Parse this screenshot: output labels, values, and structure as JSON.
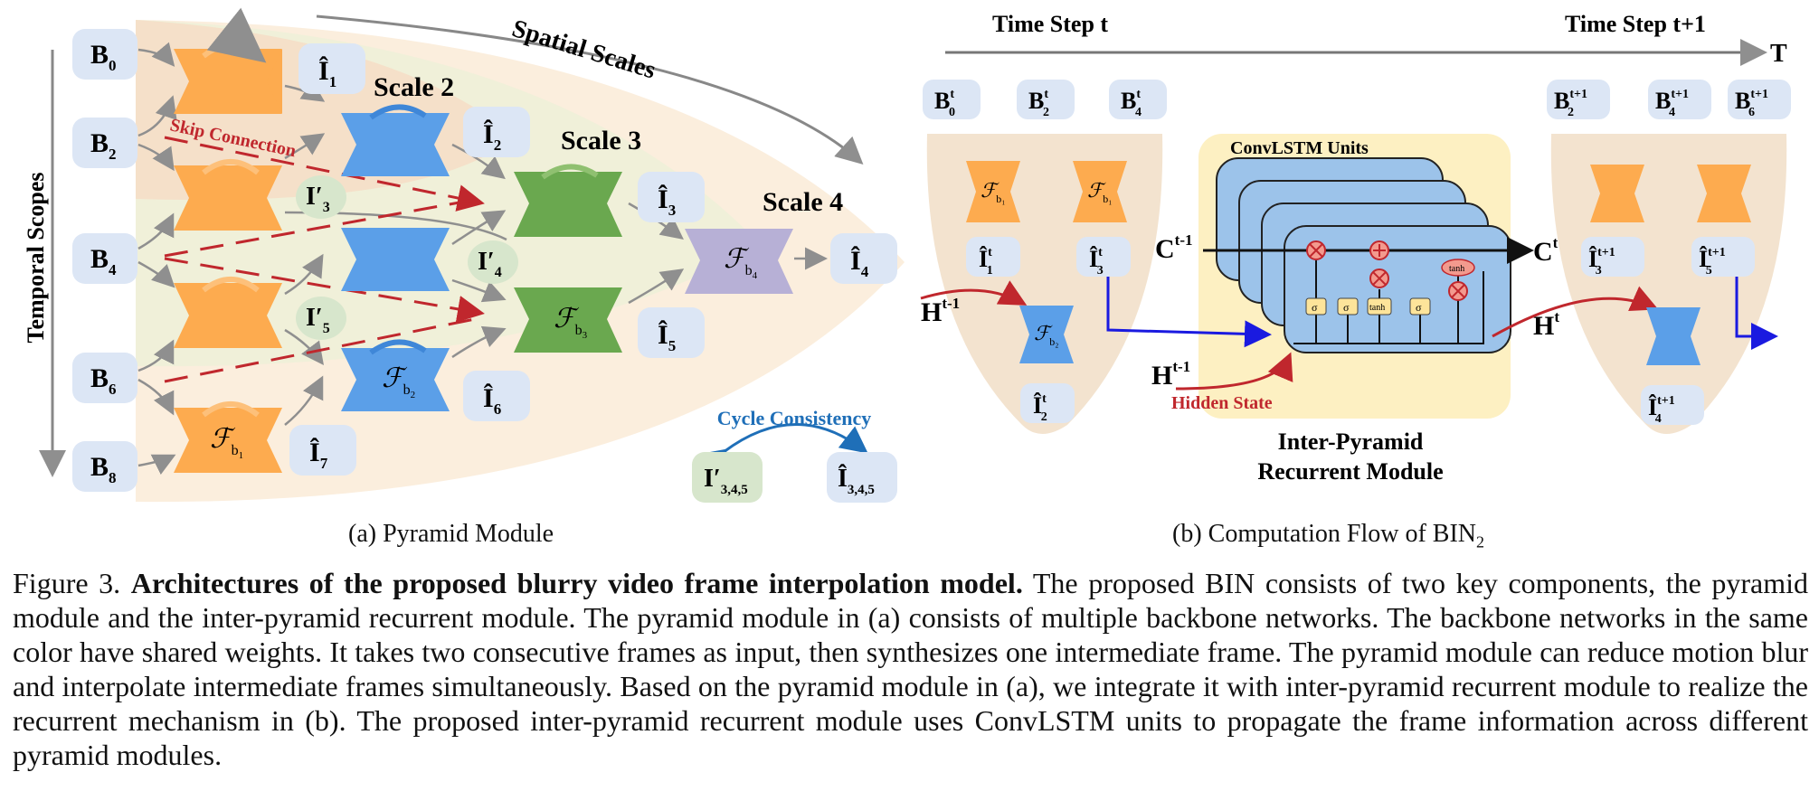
{
  "panel_a": {
    "subcaption": "(a) Pyramid Module",
    "left_axis_label": "Temporal Scopes",
    "top_axis_label": "Spatial Scales",
    "skip_label": "Skip Connection",
    "cycle_label": "Cycle Consistency",
    "scale_labels": [
      "Scale 2",
      "Scale 3",
      "Scale 4"
    ],
    "inputs": [
      "B",
      "B",
      "B",
      "B",
      "B"
    ],
    "input_subs": [
      "0",
      "2",
      "4",
      "6",
      "8"
    ],
    "outputs": [
      "Î",
      "Î",
      "Î",
      "Î",
      "Î",
      "Î",
      "Î"
    ],
    "output_subs": [
      "1",
      "2",
      "3",
      "4",
      "5",
      "6",
      "7"
    ],
    "warped": [
      "I′",
      "I′",
      "I′"
    ],
    "warped_subs": [
      "3",
      "4",
      "5"
    ],
    "cycle_items": [
      "I′",
      "Î"
    ],
    "cycle_subs": [
      "3,4,5",
      "3,4,5"
    ],
    "net_symbol": "ℱ",
    "net_subs": [
      "b1",
      "b2",
      "b3",
      "b4"
    ]
  },
  "panel_b": {
    "subcaption": "(b) Computation Flow of BIN",
    "subcaption_sub": "2",
    "time_step_t": "Time Step t",
    "time_step_t1": "Time Step t+1",
    "time_axis": "T",
    "convlstm_label": "ConvLSTM Units",
    "module_title_1": "Inter-Pyramid",
    "module_title_2": "Recurrent Module",
    "hidden_state": "Hidden State",
    "c_prev": "C",
    "c_prev_sup": "t-1",
    "c_next": "C",
    "c_next_sup": "t",
    "h_prev": "H",
    "h_prev_sup": "t-1",
    "h_next": "H",
    "h_next_sup": "t",
    "sigma": "σ",
    "tanh": "tanh",
    "inputs_t": [
      "B",
      "B",
      "B"
    ],
    "inputs_t_subs": [
      "0",
      "2",
      "4"
    ],
    "inputs_t_sup": "t",
    "inputs_t1": [
      "B",
      "B",
      "B"
    ],
    "inputs_t1_subs": [
      "2",
      "4",
      "6"
    ],
    "inputs_t1_sup": "t+1",
    "outputs_t_subs": [
      "1",
      "3",
      "2"
    ],
    "outputs_t1_subs": [
      "3",
      "5",
      "4"
    ]
  },
  "caption": {
    "label": "Figure 3.",
    "bold_title": "Architectures of the proposed blurry video frame interpolation model.",
    "body": "The proposed BIN consists of two key components, the pyramid module and the inter-pyramid recurrent module. The pyramid module in (a) consists of multiple backbone networks. The backbone networks in the same color have shared weights. It takes two consecutive frames as input, then synthesizes one intermediate frame. The pyramid module can reduce motion blur and interpolate intermediate frames simultaneously. Based on the pyramid module in (a), we integrate it with inter-pyramid recurrent module to realize the recurrent mechanism in (b). The proposed inter-pyramid recurrent module uses ConvLSTM units to propagate the frame information across different pyramid modules."
  },
  "colors": {
    "orange": "#fdab4f",
    "blue": "#5b9fe8",
    "green": "#6aa84f",
    "purple": "#b7b0d6",
    "node": "#dce6f5",
    "node_green": "#d7e6cc",
    "beige": "#f3e3cf",
    "yellow": "#fdf0c2",
    "red": "#c0272d",
    "link_blue": "#1f6fb8"
  }
}
